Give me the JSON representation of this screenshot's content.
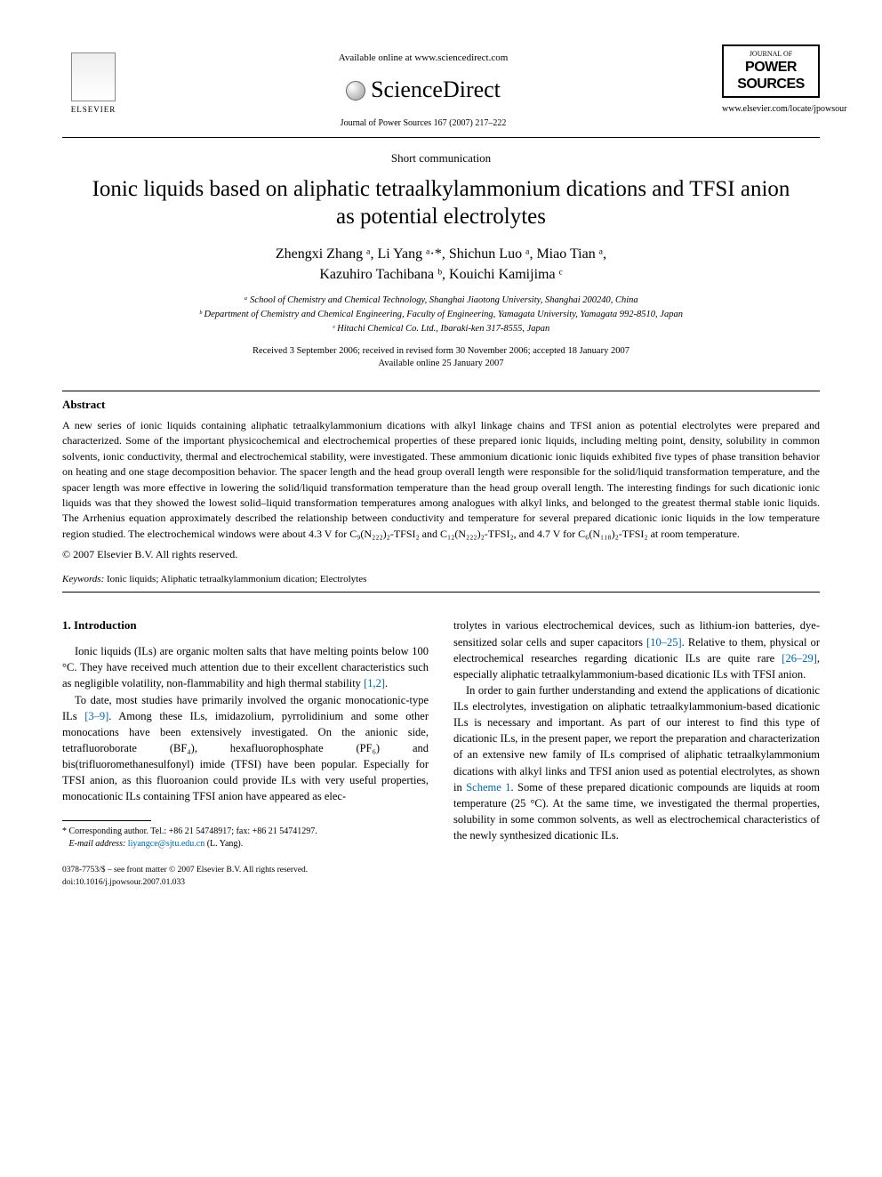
{
  "header": {
    "available_online": "Available online at www.sciencedirect.com",
    "sciencedirect": "ScienceDirect",
    "journal_ref": "Journal of Power Sources 167 (2007) 217–222",
    "elsevier_label": "ELSEVIER",
    "journal_box_top": "JOURNAL OF",
    "journal_box_main": "POWER SOURCES",
    "journal_url": "www.elsevier.com/locate/jpowsour"
  },
  "article": {
    "type": "Short communication",
    "title": "Ionic liquids based on aliphatic tetraalkylammonium dications and TFSI anion as potential electrolytes",
    "authors_line1": "Zhengxi Zhang ᵃ, Li Yang ᵃ·*, Shichun Luo ᵃ, Miao Tian ᵃ,",
    "authors_line2": "Kazuhiro Tachibana ᵇ, Kouichi Kamijima ᶜ",
    "aff_a": "ᵃ School of Chemistry and Chemical Technology, Shanghai Jiaotong University, Shanghai 200240, China",
    "aff_b": "ᵇ Department of Chemistry and Chemical Engineering, Faculty of Engineering, Yamagata University, Yamagata 992-8510, Japan",
    "aff_c": "ᶜ Hitachi Chemical Co. Ltd., Ibaraki-ken 317-8555, Japan",
    "dates_line1": "Received 3 September 2006; received in revised form 30 November 2006; accepted 18 January 2007",
    "dates_line2": "Available online 25 January 2007"
  },
  "abstract": {
    "heading": "Abstract",
    "text": "A new series of ionic liquids containing aliphatic tetraalkylammonium dications with alkyl linkage chains and TFSI anion as potential electrolytes were prepared and characterized. Some of the important physicochemical and electrochemical properties of these prepared ionic liquids, including melting point, density, solubility in common solvents, ionic conductivity, thermal and electrochemical stability, were investigated. These ammonium dicationic ionic liquids exhibited five types of phase transition behavior on heating and one stage decomposition behavior. The spacer length and the head group overall length were responsible for the solid/liquid transformation temperature, and the spacer length was more effective in lowering the solid/liquid transformation temperature than the head group overall length. The interesting findings for such dicationic ionic liquids was that they showed the lowest solid–liquid transformation temperatures among analogues with alkyl links, and belonged to the greatest thermal stable ionic liquids. The Arrhenius equation approximately described the relationship between conductivity and temperature for several prepared dicationic ionic liquids in the low temperature region studied. The electrochemical windows were about 4.3 V for C₉(N₂₂₂)₂-TFSI₂ and C₁₂(N₂₂₂)₂-TFSI₂, and 4.7 V for C₆(N₁₁₈)₂-TFSI₂ at room temperature.",
    "copyright": "© 2007 Elsevier B.V. All rights reserved.",
    "keywords_label": "Keywords:",
    "keywords_text": " Ionic liquids; Aliphatic tetraalkylammonium dication; Electrolytes"
  },
  "body": {
    "section_heading": "1.  Introduction",
    "col1_p1": "Ionic liquids (ILs) are organic molten salts that have melting points below 100 °C. They have received much attention due to their excellent characteristics such as negligible volatility, non-flammability and high thermal stability ",
    "col1_p1_ref": "[1,2]",
    "col1_p1_end": ".",
    "col1_p2": "To date, most studies have primarily involved the organic monocationic-type ILs ",
    "col1_p2_ref": "[3–9]",
    "col1_p2_cont": ". Among these ILs, imidazolium, pyrrolidinium and some other monocations have been extensively investigated. On the anionic side, tetrafluoroborate (BF₄), hexafluorophosphate (PF₆) and bis(trifluoromethanesulfonyl) imide (TFSI) have been popular. Especially for TFSI anion, as this fluoroanion could provide ILs with very useful properties, monocationic ILs containing TFSI anion have appeared as elec-",
    "col2_p1": "trolytes in various electrochemical devices, such as lithium-ion batteries, dye-sensitized solar cells and super capacitors ",
    "col2_p1_ref": "[10–25]",
    "col2_p1_cont": ". Relative to them, physical or electrochemical researches regarding dicationic ILs are quite rare ",
    "col2_p1_ref2": "[26–29]",
    "col2_p1_end": ", especially aliphatic tetraalkylammonium-based dicationic ILs with TFSI anion.",
    "col2_p2_a": "In order to gain further understanding and extend the applications of dicationic ILs electrolytes, investigation on aliphatic tetraalkylammonium-based dicationic ILs is necessary and important. As part of our interest to find this type of dicationic ILs, in the present paper, we report the preparation and characterization of an extensive new family of ILs comprised of aliphatic tetraalkylammonium dications with alkyl links and TFSI anion used as potential electrolytes, as shown in ",
    "col2_p2_ref": "Scheme 1",
    "col2_p2_b": ". Some of these prepared dicationic compounds are liquids at room temperature (25 °C). At the same time, we investigated the thermal properties, solubility in some common solvents, as well as electrochemical characteristics of the newly synthesized dicationic ILs."
  },
  "footnote": {
    "corresponding": "* Corresponding author. Tel.: +86 21 54748917; fax: +86 21 54741297.",
    "email_label": "E-mail address:",
    "email": " liyangce@sjtu.edu.cn",
    "email_author": " (L. Yang)."
  },
  "footer": {
    "line1": "0378-7753/$ – see front matter © 2007 Elsevier B.V. All rights reserved.",
    "line2": "doi:10.1016/j.jpowsour.2007.01.033"
  },
  "colors": {
    "link": "#0066aa",
    "text": "#000000",
    "bg": "#ffffff"
  }
}
